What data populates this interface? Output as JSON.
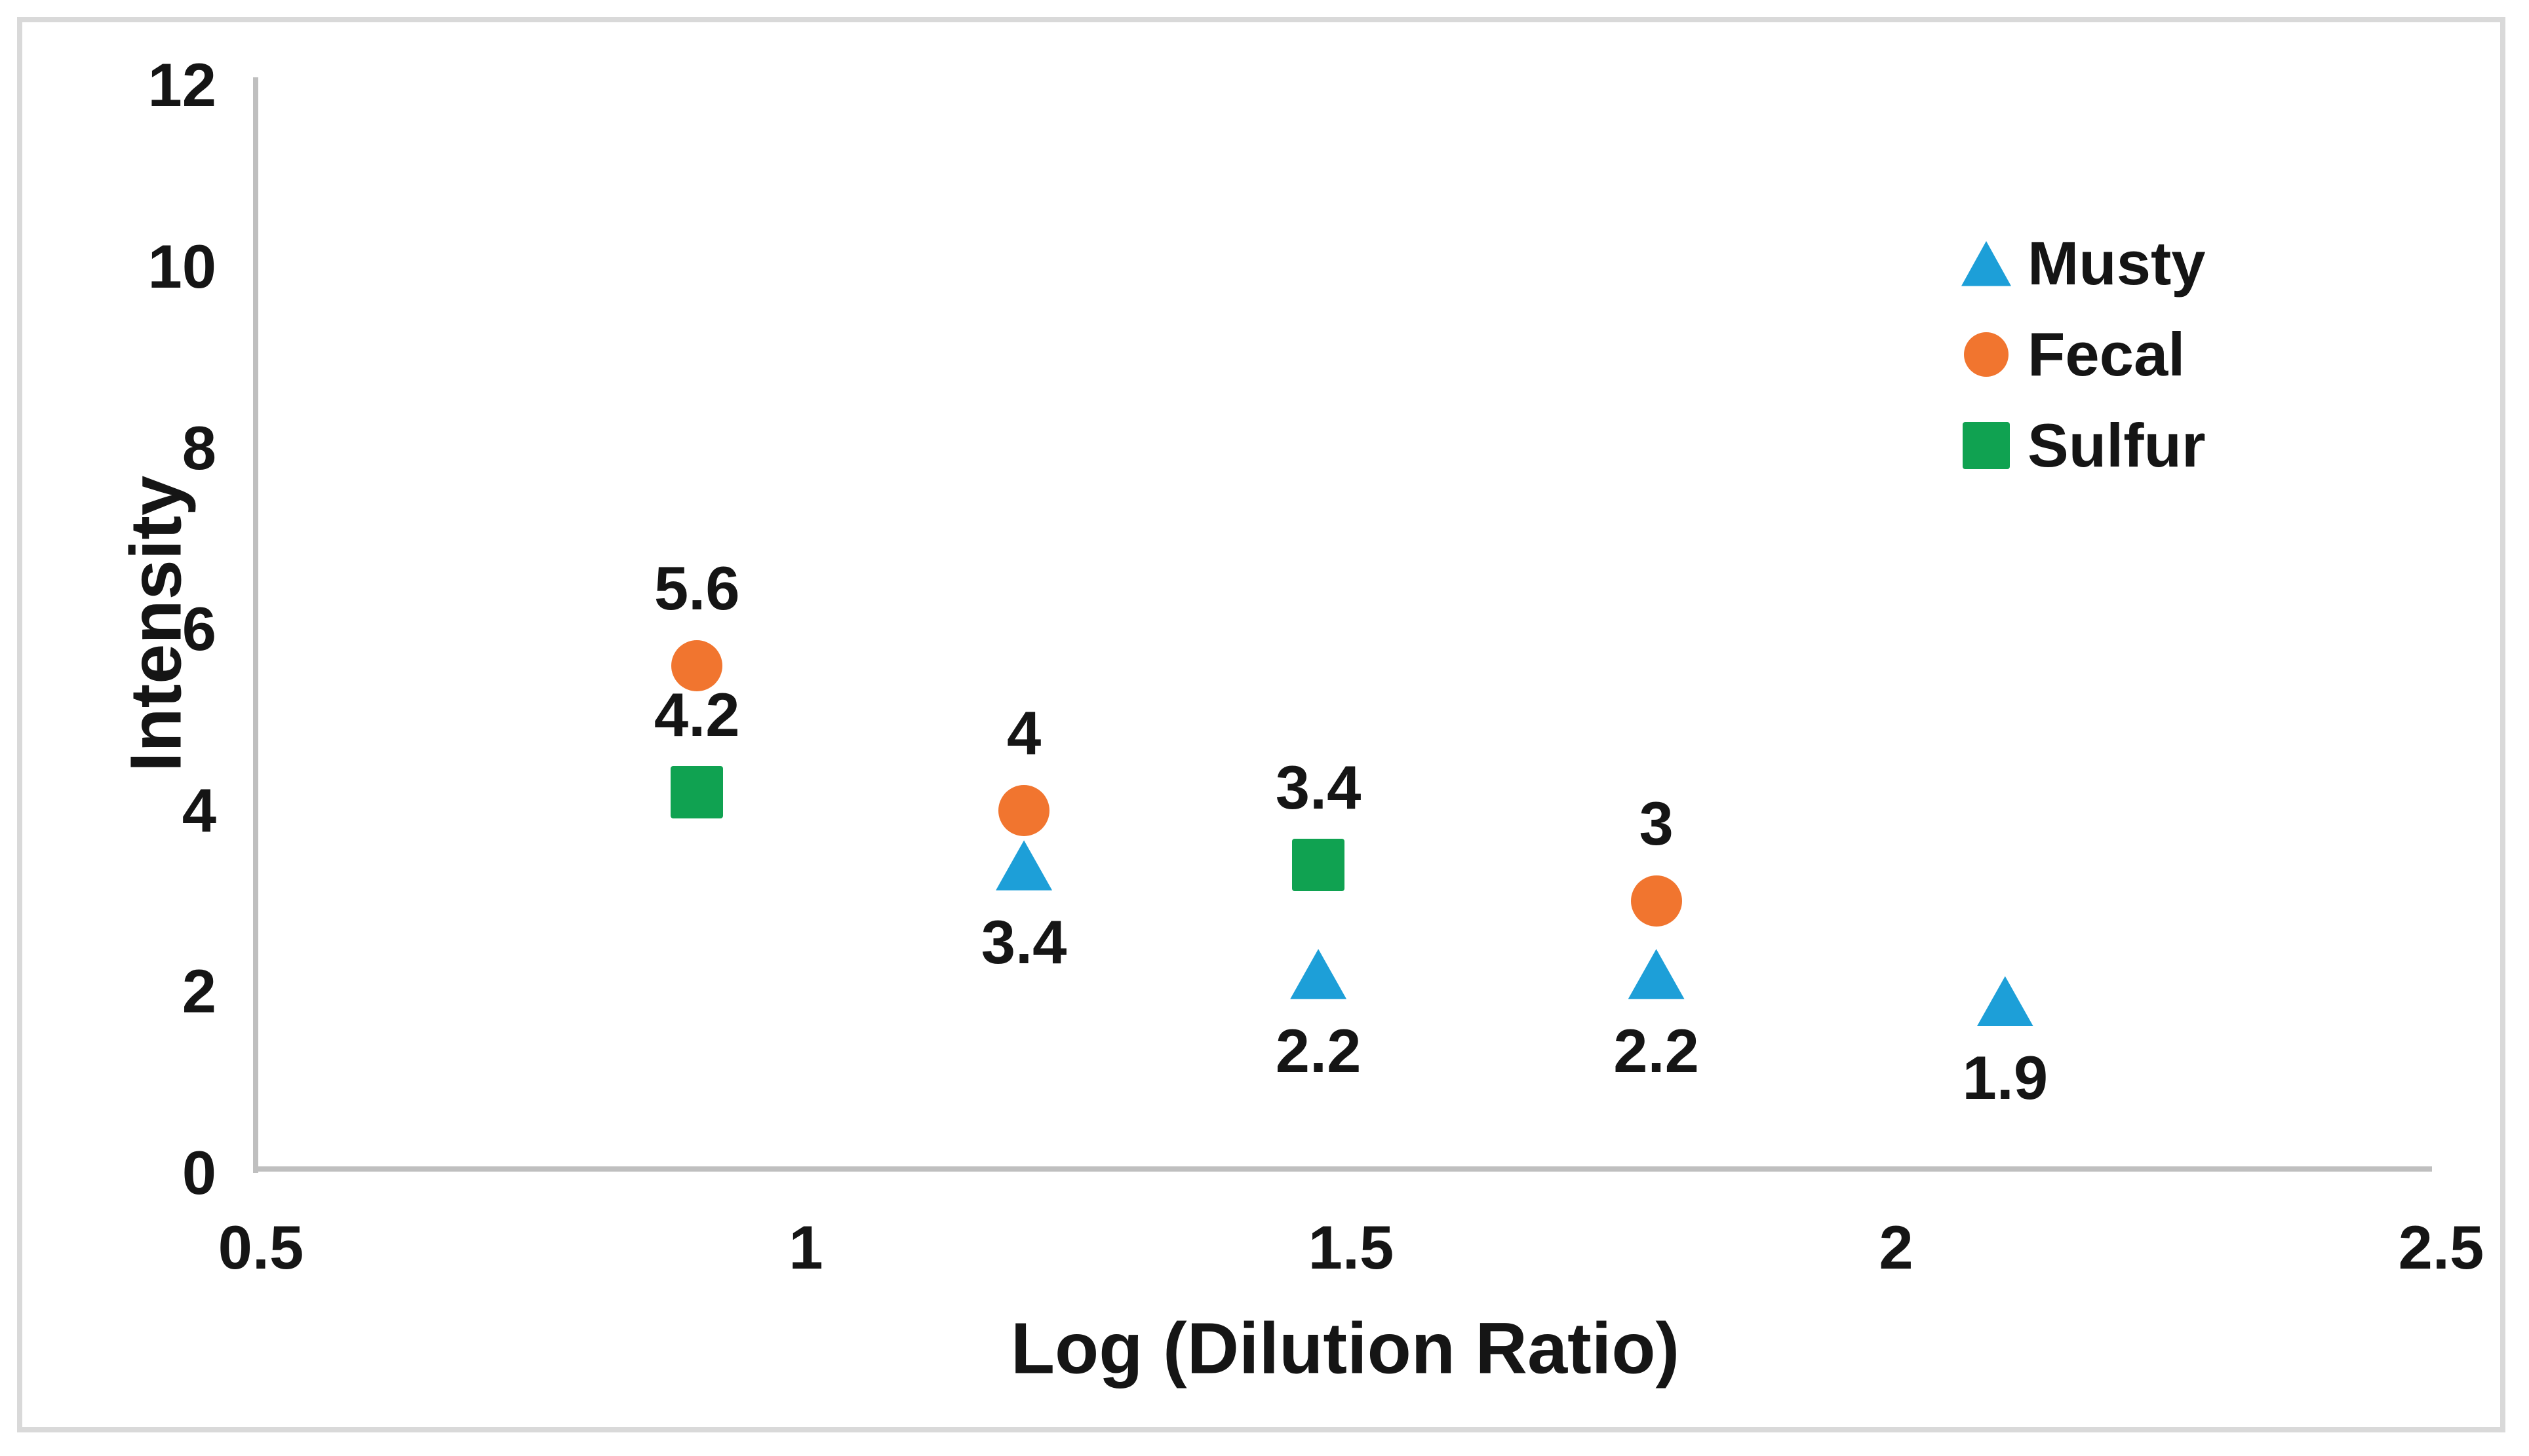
{
  "chart_data": {
    "type": "scatter",
    "title": "",
    "xlabel": "Log (Dilution Ratio)",
    "ylabel": "Intensity",
    "grid": false,
    "legend_position": "upper-right",
    "x_axis": {
      "min": 0.5,
      "max": 2.5,
      "tick_values": [
        0.5,
        1,
        1.5,
        2,
        2.5
      ],
      "tick_labels": [
        "0.5",
        "1",
        "1.5",
        "2",
        "2.5"
      ]
    },
    "y_axis": {
      "min": 0,
      "max": 12,
      "tick_values": [
        0,
        2,
        4,
        6,
        8,
        10,
        12
      ],
      "tick_labels": [
        "0",
        "2",
        "4",
        "6",
        "8",
        "10",
        "12"
      ]
    },
    "axis_line_color": "#bfbfbf",
    "text_color": "#151515",
    "series": [
      {
        "name": "Musty",
        "marker": "triangle",
        "color": "#1d9fd8",
        "points": [
          {
            "x": 1.2,
            "y": 3.4,
            "label": "3.4",
            "label_pos": "below"
          },
          {
            "x": 1.47,
            "y": 2.2,
            "label": "2.2",
            "label_pos": "below"
          },
          {
            "x": 1.78,
            "y": 2.2,
            "label": "2.2",
            "label_pos": "below"
          },
          {
            "x": 2.1,
            "y": 1.9,
            "label": "1.9",
            "label_pos": "below"
          }
        ]
      },
      {
        "name": "Fecal",
        "marker": "circle",
        "color": "#f1752f",
        "points": [
          {
            "x": 0.9,
            "y": 5.6,
            "label": "5.6",
            "label_pos": "above"
          },
          {
            "x": 1.2,
            "y": 4,
            "label": "4",
            "label_pos": "above"
          },
          {
            "x": 1.78,
            "y": 3,
            "label": "3",
            "label_pos": "above"
          }
        ]
      },
      {
        "name": "Sulfur",
        "marker": "square",
        "color": "#10a251",
        "points": [
          {
            "x": 0.9,
            "y": 4.2,
            "label": "4.2",
            "label_pos": "above"
          },
          {
            "x": 1.47,
            "y": 3.4,
            "label": "3.4",
            "label_pos": "above"
          }
        ]
      }
    ]
  }
}
